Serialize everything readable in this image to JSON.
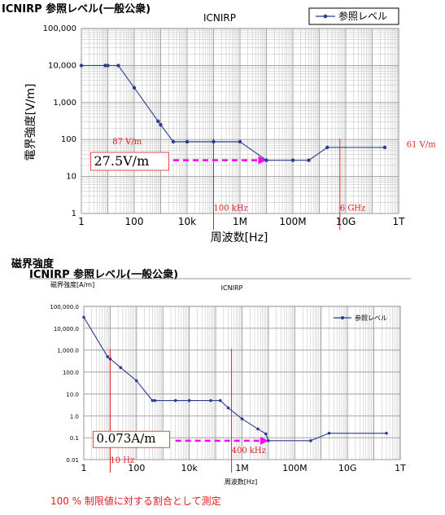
{
  "top_heading": "ICNIRP 参照レベル(一般公衆)",
  "section2_label": "磁界強度",
  "section2_heading": "ICNIRP 参照レベル(一般公衆)",
  "footer_note": "100 % 制限値に対する割合として測定",
  "colors": {
    "series": "#2b3e8e",
    "annotation_red": "#e02020",
    "arrow_magenta": "#ff00ff",
    "grid": "#bdbdbd"
  },
  "chart_data": [
    {
      "type": "line",
      "title": "ICNIRP",
      "xlabel": "周波数[Hz]",
      "ylabel": "電界強度[V/m]",
      "x_scale": "log",
      "y_scale": "log",
      "xlim": [
        1,
        1000000000000
      ],
      "ylim": [
        1,
        100000
      ],
      "grid": true,
      "legend_position": "top-right",
      "x_ticks": [
        {
          "v": 1,
          "label": "1"
        },
        {
          "v": 100,
          "label": "100"
        },
        {
          "v": 10000,
          "label": "10k"
        },
        {
          "v": 1000000,
          "label": "1M"
        },
        {
          "v": 100000000,
          "label": "100M"
        },
        {
          "v": 10000000000,
          "label": "10G"
        },
        {
          "v": 1000000000000,
          "label": "1T"
        }
      ],
      "y_ticks": [
        {
          "v": 1,
          "label": "1"
        },
        {
          "v": 10,
          "label": "10"
        },
        {
          "v": 100,
          "label": "100"
        },
        {
          "v": 1000,
          "label": "1,000"
        },
        {
          "v": 10000,
          "label": "10,000"
        },
        {
          "v": 100000,
          "label": "100,000"
        }
      ],
      "series": [
        {
          "name": "参照レベル",
          "x": [
            1,
            8,
            10,
            25,
            100,
            800,
            1000,
            3000,
            10000,
            100000,
            1000000,
            10000000,
            100000000,
            400000000,
            2000000000,
            300000000000
          ],
          "y": [
            10000,
            10000,
            10000,
            10000,
            2500,
            312,
            250,
            87,
            87,
            87,
            87,
            27.5,
            27.5,
            27.5,
            61,
            61
          ]
        }
      ],
      "annotations": [
        {
          "text": "87 V/m",
          "x": 15,
          "y": 75,
          "color": "red"
        },
        {
          "text": "61 V/m",
          "x": 2000000000000,
          "y": 62,
          "color": "red"
        },
        {
          "text": "100 kHz",
          "x": 100000,
          "y": 1.2,
          "color": "red"
        },
        {
          "text": "6 GHz",
          "x": 6000000000,
          "y": 1.2,
          "color": "red"
        },
        {
          "text": "27.5V/m",
          "x": 3,
          "y": 18,
          "color": "black",
          "boxed": true
        }
      ],
      "vertical_lines": [
        100000,
        6000000000
      ],
      "arrow": {
        "from": 3000,
        "to": 10000000,
        "y": 27.5
      }
    },
    {
      "type": "line",
      "title": "ICNIRP",
      "xlabel": "周波数[Hz]",
      "ylabel": "磁界強度[A/m]",
      "x_scale": "log",
      "y_scale": "log",
      "xlim": [
        1,
        1000000000000
      ],
      "ylim": [
        0.01,
        100000
      ],
      "grid": true,
      "legend_position": "top-right",
      "x_ticks": [
        {
          "v": 1,
          "label": "1"
        },
        {
          "v": 100,
          "label": "100"
        },
        {
          "v": 10000,
          "label": "10k"
        },
        {
          "v": 1000000,
          "label": "1M"
        },
        {
          "v": 100000000,
          "label": "100M"
        },
        {
          "v": 10000000000,
          "label": "10G"
        },
        {
          "v": 1000000000000,
          "label": "1T"
        }
      ],
      "y_ticks": [
        {
          "v": 0.01,
          "label": "0.01"
        },
        {
          "v": 0.1,
          "label": "0.1"
        },
        {
          "v": 1,
          "label": "1.0"
        },
        {
          "v": 10,
          "label": "10.0"
        },
        {
          "v": 100,
          "label": "100.0"
        },
        {
          "v": 1000,
          "label": "1,000.0"
        },
        {
          "v": 10000,
          "label": "10,000.0"
        },
        {
          "v": 100000,
          "label": "100,000.0"
        }
      ],
      "series": [
        {
          "name": "参照レベル",
          "x": [
            1,
            8,
            10,
            25,
            100,
            400,
            500,
            3000,
            10000,
            65000,
            150000,
            300000,
            1000000,
            4000000,
            8000000,
            10000000,
            400000000,
            2000000000,
            300000000000
          ],
          "y": [
            32000,
            500,
            400,
            160,
            40,
            5,
            5,
            5,
            5,
            5,
            5,
            2.3,
            0.73,
            0.25,
            0.15,
            0.073,
            0.073,
            0.16,
            0.16
          ]
        }
      ],
      "annotations": [
        {
          "text": "10 Hz",
          "x": 10,
          "y": 0.007,
          "color": "red"
        },
        {
          "text": "400 kHz",
          "x": 400000,
          "y": 0.02,
          "color": "red"
        },
        {
          "text": "0.073A/m",
          "x": 3,
          "y": 0.05,
          "color": "black",
          "boxed": true
        }
      ],
      "vertical_lines": [
        10,
        400000
      ],
      "arrow": {
        "from": 3000,
        "to": 10000000,
        "y": 0.073
      }
    }
  ]
}
